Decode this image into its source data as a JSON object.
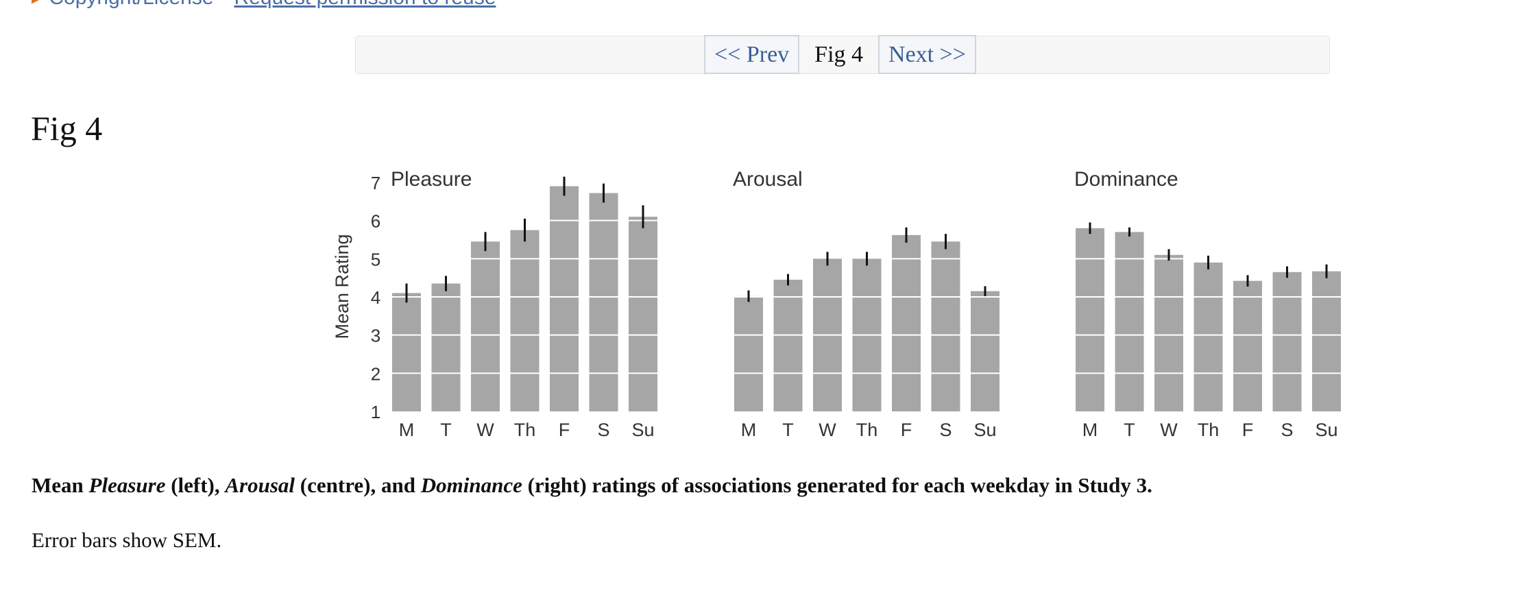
{
  "top_links": {
    "copyright": "Copyright/License",
    "permission": "Request permission to reuse"
  },
  "pager": {
    "prev_label": "<< Prev",
    "current_label": "Fig 4",
    "next_label": "Next >>"
  },
  "figure": {
    "title": "Fig 4"
  },
  "caption": {
    "w1": "Mean ",
    "pleasure": "Pleasure",
    "w2": " (left), ",
    "arousal": "Arousal",
    "w3": " (centre), and ",
    "dominance": "Dominance",
    "w4": " (right) ratings of associations generated for each weekday in Study 3.",
    "note": "Error bars show SEM."
  },
  "colors": {
    "bar": "#a6a6a6",
    "gridline": "#ffffff",
    "error_bar": "#111111",
    "link": "#4a6ea5",
    "pager_link": "#3a5f95"
  },
  "chart_data": [
    {
      "type": "bar",
      "title": "Pleasure",
      "ylabel": "Mean Rating",
      "ylim": [
        1,
        7
      ],
      "yticks": [
        1,
        2,
        3,
        4,
        5,
        6,
        7
      ],
      "grid": true,
      "categories": [
        "M",
        "T",
        "W",
        "Th",
        "F",
        "S",
        "Su"
      ],
      "values": [
        4.1,
        4.35,
        5.45,
        5.75,
        6.9,
        6.72,
        6.1
      ],
      "error": [
        0.25,
        0.2,
        0.25,
        0.3,
        0.25,
        0.25,
        0.3
      ]
    },
    {
      "type": "bar",
      "title": "Arousal",
      "ylim": [
        1,
        7
      ],
      "grid": true,
      "categories": [
        "M",
        "T",
        "W",
        "Th",
        "F",
        "S",
        "Su"
      ],
      "values": [
        4.02,
        4.45,
        5.0,
        5.0,
        5.62,
        5.45,
        4.15
      ],
      "error": [
        0.15,
        0.15,
        0.18,
        0.18,
        0.2,
        0.2,
        0.13
      ]
    },
    {
      "type": "bar",
      "title": "Dominance",
      "ylim": [
        1,
        7
      ],
      "grid": true,
      "categories": [
        "M",
        "T",
        "W",
        "Th",
        "F",
        "S",
        "Su"
      ],
      "values": [
        5.8,
        5.7,
        5.1,
        4.9,
        4.42,
        4.65,
        4.67
      ],
      "error": [
        0.15,
        0.12,
        0.15,
        0.18,
        0.15,
        0.15,
        0.18
      ]
    }
  ]
}
